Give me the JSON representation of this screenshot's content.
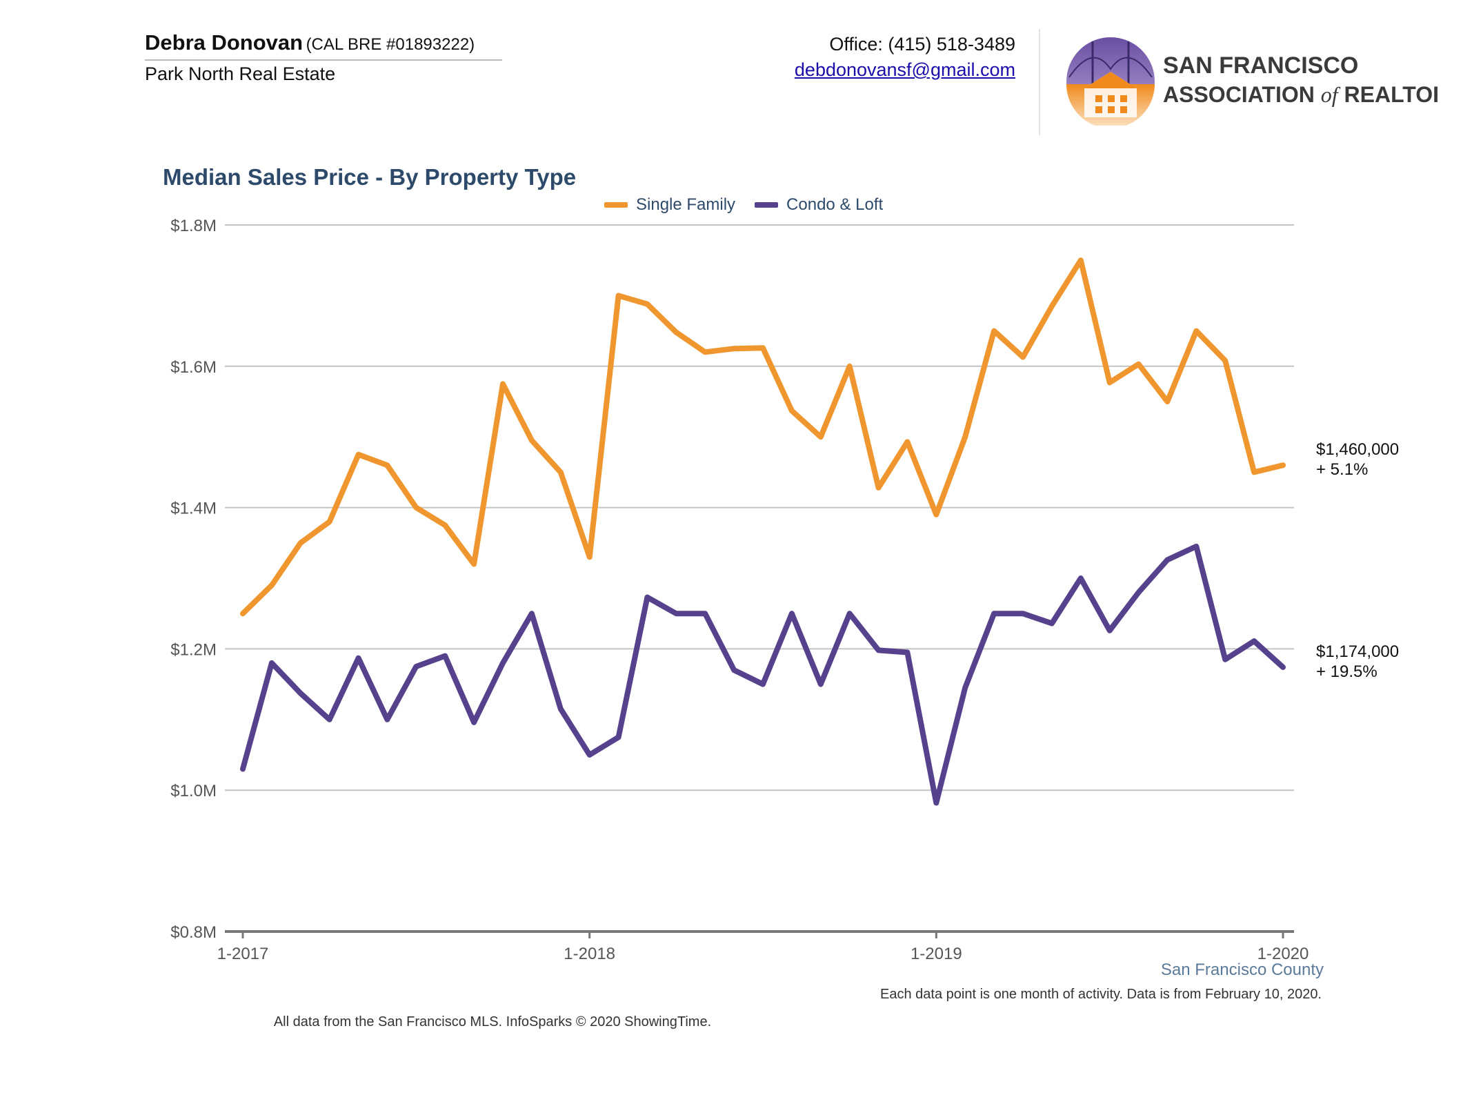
{
  "header": {
    "agent_name": "Debra Donovan",
    "agent_license": "(CAL BRE #01893222)",
    "company": "Park North Real Estate",
    "office": "Office: (415) 518-3489",
    "email": "debdonovansf@gmail.com",
    "logo_line1": "SAN FRANCISCO",
    "logo_line2a": "ASSOCIATION",
    "logo_line2b": "of",
    "logo_line2c": "REALTORS",
    "logo_reg": "®"
  },
  "colors": {
    "single_family": "#f0962e",
    "condo_loft": "#55418c",
    "title": "#2e4a6b"
  },
  "chart_data": {
    "type": "line",
    "title": "Median Sales Price - By Property Type",
    "xlabel": "",
    "ylabel": "",
    "ylim": [
      800000,
      1800000
    ],
    "yticks": [
      800000,
      1000000,
      1200000,
      1400000,
      1600000,
      1800000
    ],
    "ytick_labels": [
      "$0.8M",
      "$1.0M",
      "$1.2M",
      "$1.4M",
      "$1.6M",
      "$1.8M"
    ],
    "xtick_labels": [
      "1-2017",
      "1-2018",
      "1-2019",
      "1-2020"
    ],
    "xtick_index": [
      0,
      12,
      24,
      36
    ],
    "grid": true,
    "legend": "top-center",
    "series": [
      {
        "name": "Single Family",
        "color": "#f0962e",
        "end_label": "$1,460,000",
        "end_change": "+ 5.1%",
        "values": [
          1250000,
          1290000,
          1350000,
          1380000,
          1475000,
          1460000,
          1400000,
          1375000,
          1320000,
          1575000,
          1495000,
          1450000,
          1330000,
          1700000,
          1688000,
          1648000,
          1620000,
          1625000,
          1626000,
          1537000,
          1500000,
          1600000,
          1428000,
          1493000,
          1390000,
          1500000,
          1650000,
          1613000,
          1685000,
          1750000,
          1577000,
          1603000,
          1550000,
          1650000,
          1608000,
          1450000,
          1460000
        ]
      },
      {
        "name": "Condo & Loft",
        "color": "#55418c",
        "end_label": "$1,174,000",
        "end_change": "+ 19.5%",
        "values": [
          1030000,
          1180000,
          1137000,
          1100000,
          1187000,
          1100000,
          1175000,
          1190000,
          1096000,
          1180000,
          1250000,
          1115000,
          1050000,
          1075000,
          1273000,
          1250000,
          1250000,
          1170000,
          1150000,
          1250000,
          1150000,
          1250000,
          1198000,
          1195000,
          982000,
          1145000,
          1250000,
          1250000,
          1236000,
          1300000,
          1226000,
          1280000,
          1326000,
          1345000,
          1185000,
          1211000,
          1174000
        ]
      }
    ],
    "region": "San Francisco County",
    "note": "Each data point is one month of activity. Data is from February 10, 2020."
  },
  "footer": {
    "source": "All data from the San Francisco MLS. InfoSparks © 2020 ShowingTime."
  }
}
